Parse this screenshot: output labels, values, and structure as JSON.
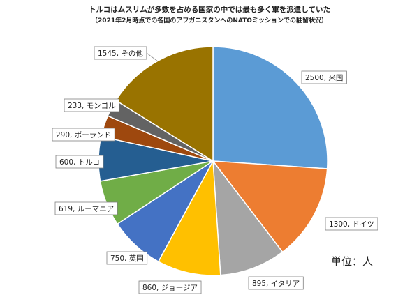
{
  "chart_data": {
    "type": "pie",
    "title": "トルコはムスリムが多数を占める国家の中では最も多く軍を派遣していた",
    "subtitle": "（2021年2月時点での各国のアフガニスタンへのNATOミッションでの駐留状況）",
    "unit_label": "単位：人",
    "slices": [
      {
        "value": 2500,
        "label": "2500, 米国",
        "color": "#5B9BD5"
      },
      {
        "value": 1300,
        "label": "1300, ドイツ",
        "color": "#ED7D31"
      },
      {
        "value": 895,
        "label": "895, イタリア",
        "color": "#A5A5A5"
      },
      {
        "value": 860,
        "label": "860, ジョージア",
        "color": "#FFC000"
      },
      {
        "value": 750,
        "label": "750, 英国",
        "color": "#4472C4"
      },
      {
        "value": 619,
        "label": "619, ルーマニア",
        "color": "#70AD47"
      },
      {
        "value": 600,
        "label": "600, トルコ",
        "color": "#255E91"
      },
      {
        "value": 290,
        "label": "290, ポーランド",
        "color": "#9E480E"
      },
      {
        "value": 233,
        "label": "233, モンゴル",
        "color": "#636363"
      },
      {
        "value": 1545,
        "label": "1545, その他",
        "color": "#997300"
      }
    ]
  }
}
